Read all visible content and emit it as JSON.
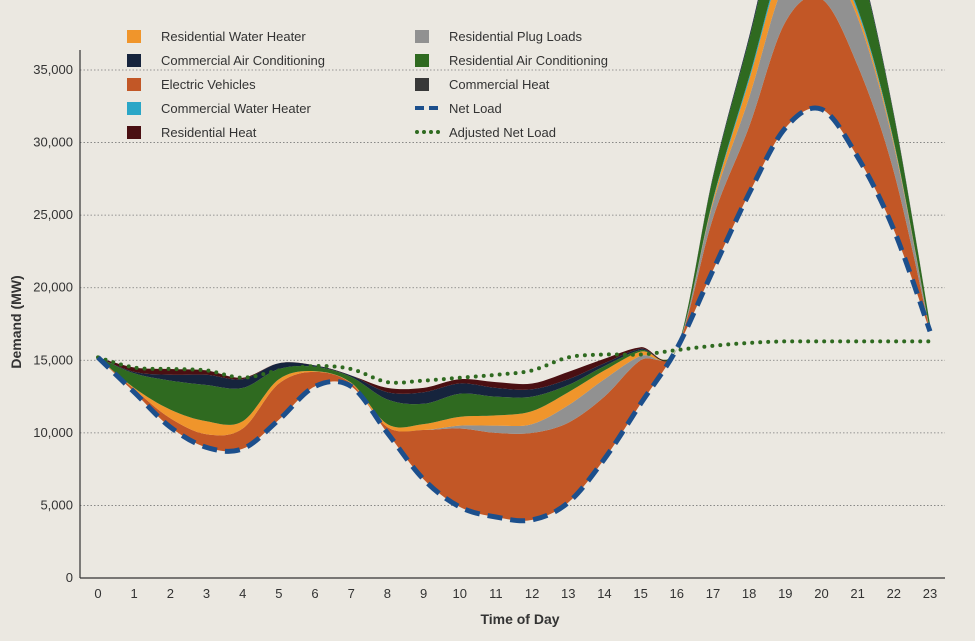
{
  "chart_data": {
    "type": "area",
    "title": "",
    "xlabel": "Time of Day",
    "ylabel": "Demand (MW)",
    "x": [
      0,
      1,
      2,
      3,
      4,
      5,
      6,
      7,
      8,
      9,
      10,
      11,
      12,
      13,
      14,
      15,
      16,
      17,
      18,
      19,
      20,
      21,
      22,
      23
    ],
    "xlim": [
      0,
      23
    ],
    "ylim": [
      0,
      35000
    ],
    "yticks": [
      0,
      5000,
      10000,
      15000,
      20000,
      25000,
      30000,
      35000
    ],
    "ytick_labels": [
      "0",
      "5,000",
      "10,000",
      "15,000",
      "20,000",
      "25,000",
      "30,000",
      "35,000"
    ],
    "grid": "horizontal dotted",
    "legend_position": "top",
    "net_load": [
      15200,
      12800,
      10400,
      9000,
      8900,
      10900,
      13200,
      13200,
      10000,
      6800,
      4900,
      4200,
      4000,
      5200,
      8200,
      12000,
      15800,
      21200,
      26500,
      31000,
      32300,
      29000,
      24000,
      17000
    ],
    "stack_order": [
      "Electric Vehicles",
      "Residential Plug Loads",
      "Residential Water Heater",
      "Commercial Water Heater",
      "Residential Air Conditioning",
      "Commercial Air Conditioning",
      "Residential Heat",
      "Commercial Heat"
    ],
    "series": [
      {
        "name": "Residential Water Heater",
        "color": "#f0952b",
        "style": "area",
        "values": [
          0,
          100,
          600,
          900,
          500,
          300,
          50,
          50,
          200,
          400,
          600,
          700,
          900,
          900,
          600,
          300,
          0,
          200,
          1200,
          1500,
          700,
          400,
          200,
          0
        ]
      },
      {
        "name": "Commercial Air Conditioning",
        "color": "#16243d",
        "style": "area",
        "values": [
          0,
          100,
          400,
          700,
          600,
          400,
          100,
          100,
          500,
          800,
          700,
          600,
          500,
          400,
          200,
          100,
          0,
          100,
          200,
          300,
          300,
          200,
          100,
          0
        ]
      },
      {
        "name": "Electric Vehicles",
        "color": "#c25726",
        "style": "area",
        "values": [
          0,
          200,
          600,
          900,
          1400,
          2500,
          1000,
          200,
          400,
          3400,
          5400,
          5800,
          6000,
          5500,
          4300,
          3000,
          0,
          3600,
          4600,
          7300,
          7600,
          6300,
          4000,
          0
        ]
      },
      {
        "name": "Commercial Water Heater",
        "color": "#2aa6c7",
        "style": "area",
        "values": [
          0,
          0,
          0,
          0,
          0,
          0,
          0,
          0,
          0,
          0,
          0,
          0,
          0,
          0,
          0,
          0,
          0,
          100,
          200,
          300,
          300,
          200,
          100,
          0
        ]
      },
      {
        "name": "Residential Heat",
        "color": "#4a0f12",
        "style": "area",
        "values": [
          0,
          300,
          400,
          300,
          100,
          0,
          0,
          0,
          300,
          300,
          300,
          400,
          400,
          500,
          300,
          100,
          0,
          0,
          0,
          0,
          0,
          0,
          0,
          0
        ]
      },
      {
        "name": "Residential Plug Loads",
        "color": "#919191",
        "style": "area",
        "values": [
          0,
          0,
          0,
          0,
          0,
          0,
          0,
          0,
          0,
          0,
          200,
          500,
          600,
          1200,
          1200,
          300,
          0,
          1000,
          2000,
          2800,
          2800,
          3300,
          1800,
          0
        ]
      },
      {
        "name": "Residential Air Conditioning",
        "color": "#2f6a20",
        "style": "area",
        "values": [
          0,
          1000,
          2000,
          2500,
          2300,
          700,
          300,
          400,
          1700,
          1400,
          1600,
          1300,
          1000,
          500,
          300,
          100,
          0,
          1500,
          2600,
          3900,
          4700,
          3600,
          1800,
          500
        ]
      },
      {
        "name": "Commercial Heat",
        "color": "#383838",
        "style": "area",
        "values": [
          0,
          0,
          0,
          0,
          0,
          0,
          0,
          0,
          0,
          0,
          0,
          0,
          0,
          0,
          0,
          0,
          0,
          0,
          0,
          0,
          0,
          0,
          0,
          0
        ]
      },
      {
        "name": "Net Load",
        "color": "#1c4f8c",
        "style": "dashed-line"
      },
      {
        "name": "Adjusted Net Load",
        "color": "#2f6a20",
        "style": "dotted-line",
        "values": [
          15200,
          14500,
          14400,
          14300,
          13800,
          14300,
          14600,
          14400,
          13500,
          13600,
          13800,
          14000,
          14300,
          15200,
          15400,
          15400,
          15700,
          16000,
          16200,
          16300,
          16300,
          16300,
          16300,
          16300
        ]
      }
    ]
  }
}
